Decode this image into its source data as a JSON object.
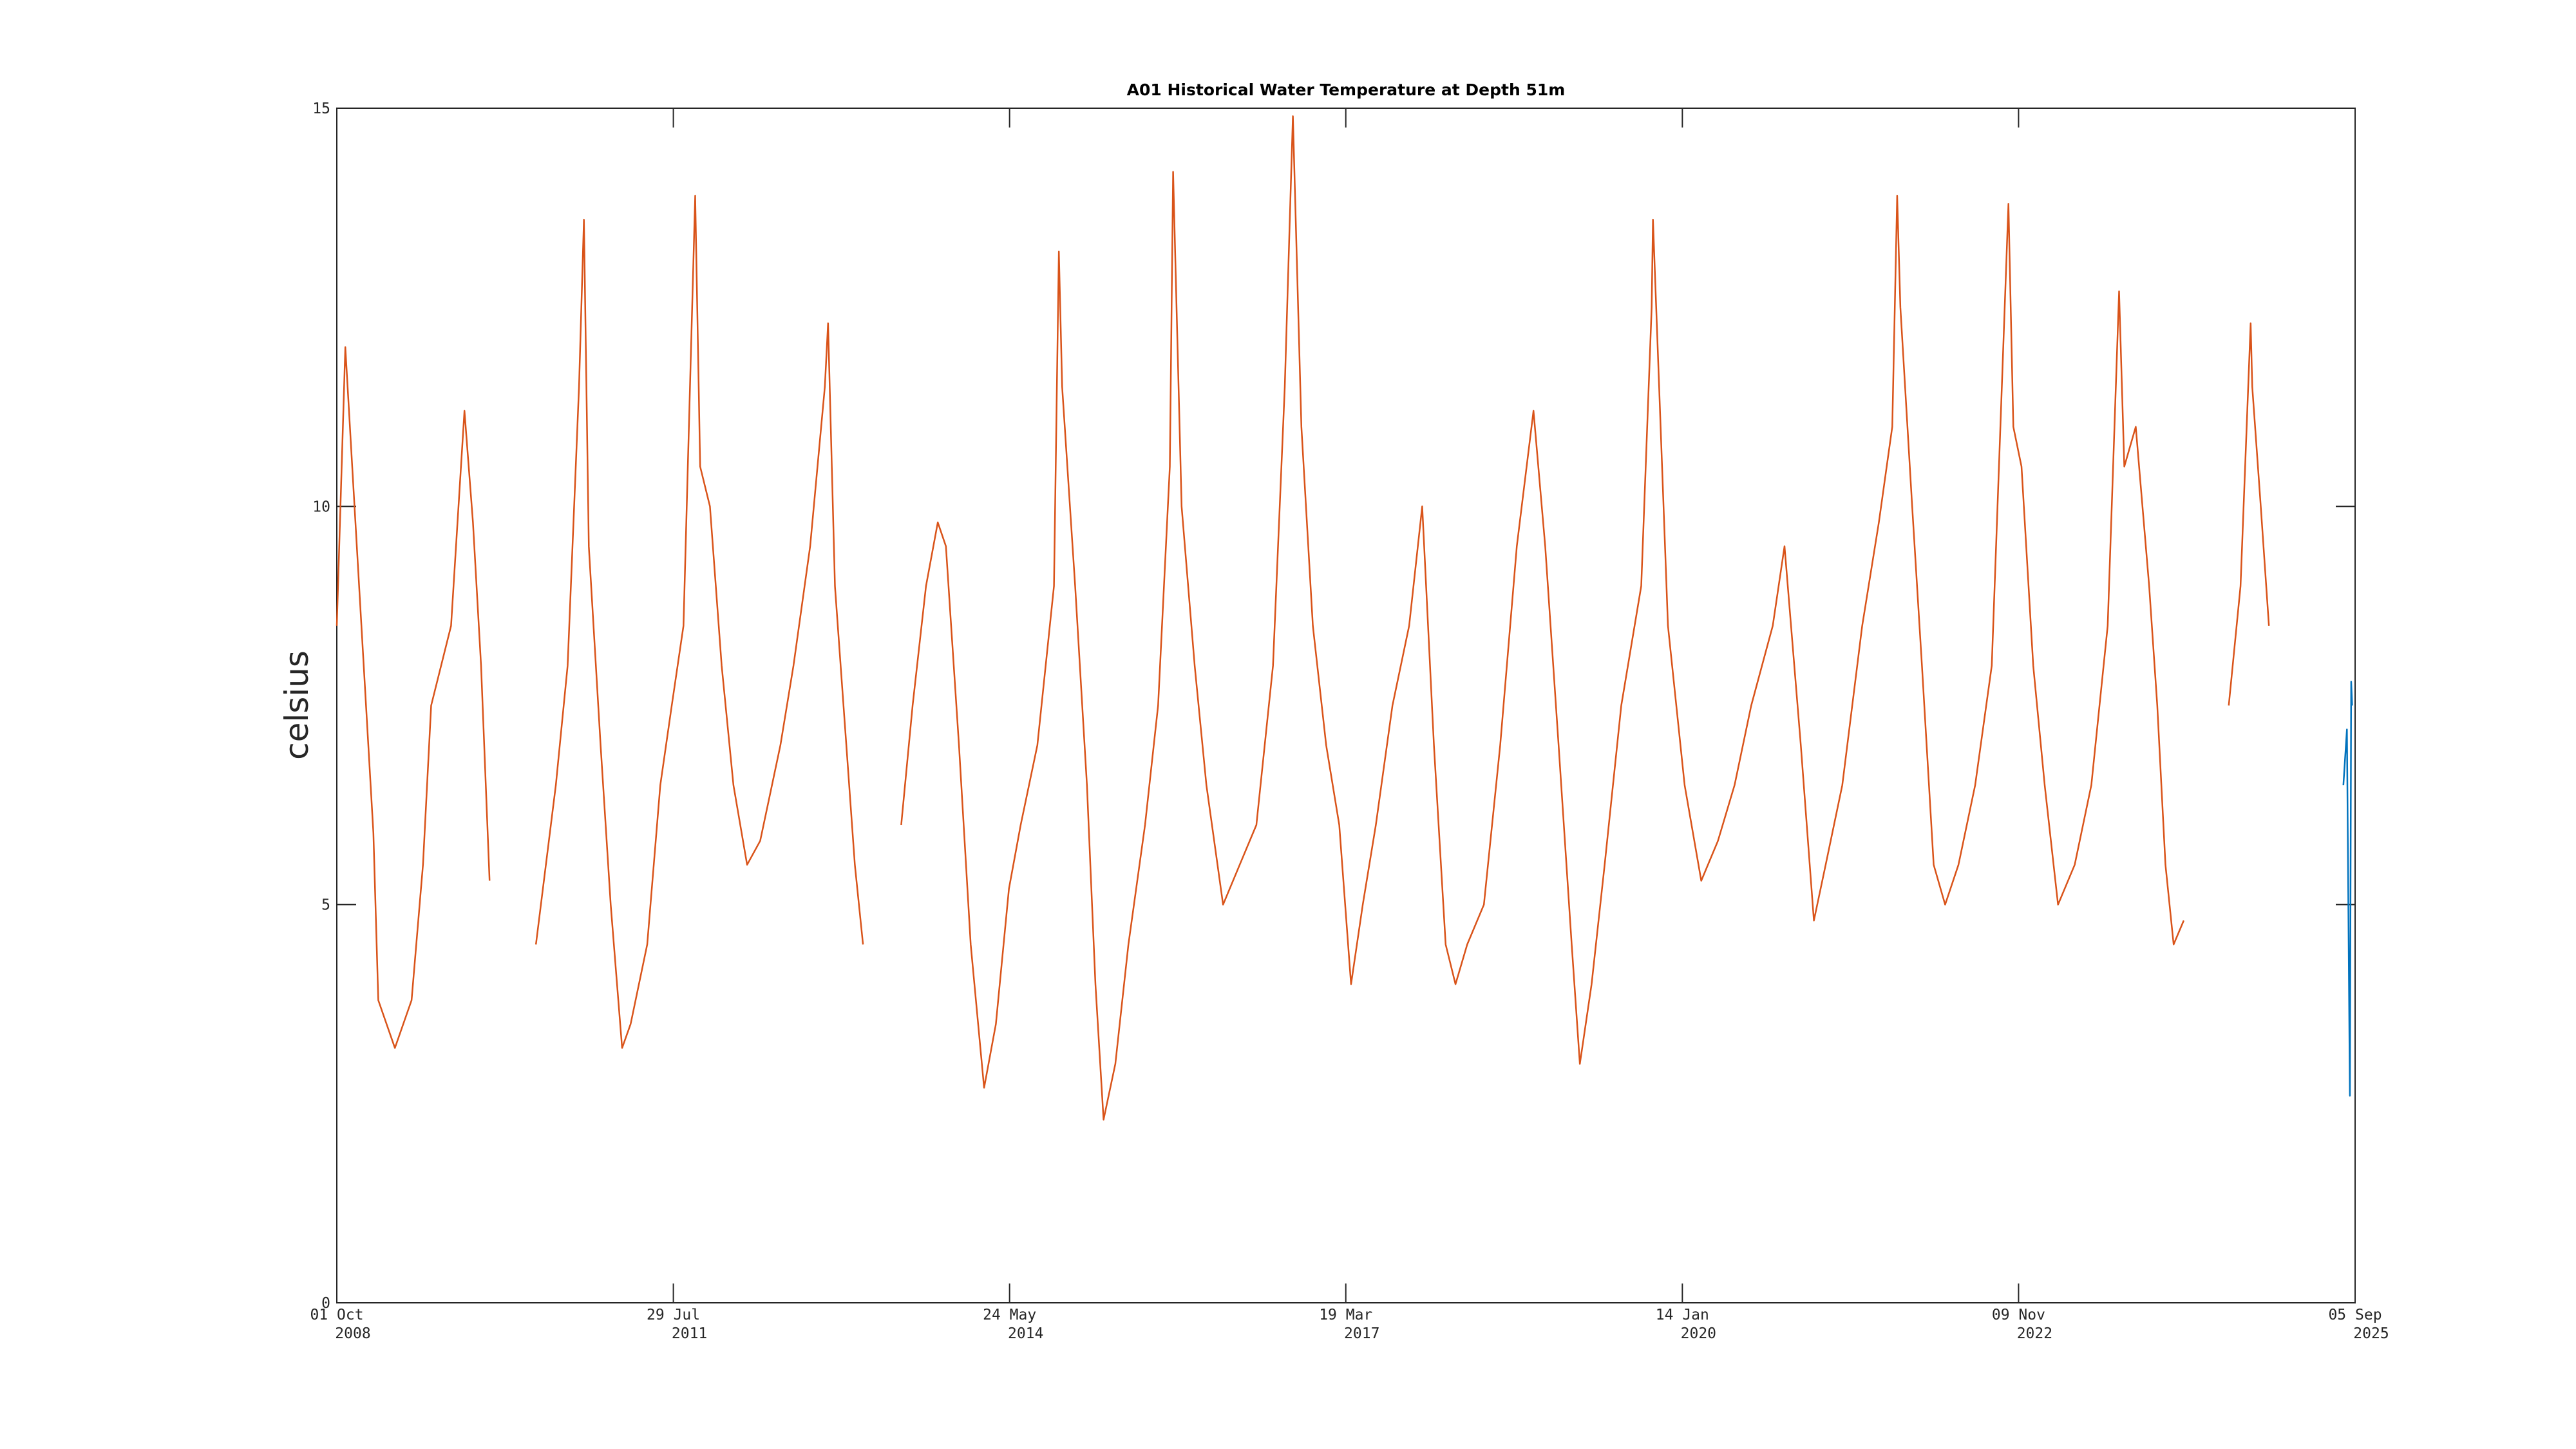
{
  "chart_data": {
    "type": "line",
    "title": "A01 Historical Water Temperature at Depth 51m",
    "y_label": "celsius",
    "xlim": [
      "2008-10-01",
      "2025-09-05"
    ],
    "xticks": [
      {
        "value": "2008-10-01",
        "label": [
          "01 Oct",
          "2008"
        ]
      },
      {
        "value": "2011-07-29",
        "label": [
          "29 Jul",
          "2011"
        ]
      },
      {
        "value": "2014-05-24",
        "label": [
          "24 May",
          "2014"
        ]
      },
      {
        "value": "2017-03-19",
        "label": [
          "19 Mar",
          "2017"
        ]
      },
      {
        "value": "2020-01-14",
        "label": [
          "14 Jan",
          "2020"
        ]
      },
      {
        "value": "2022-11-09",
        "label": [
          "09 Nov",
          "2022"
        ]
      },
      {
        "value": "2025-09-05",
        "label": [
          "05 Sep",
          "2025"
        ]
      }
    ],
    "ylim": [
      0,
      15
    ],
    "yticks": [
      0,
      5,
      10,
      15
    ],
    "grid": false,
    "series": [
      {
        "color": "#d95319",
        "x": [
          "2008-10-01",
          "2008-10-27",
          "2009-01-21",
          "2009-02-05",
          "2009-03-28",
          "2009-05-18",
          "2009-06-22",
          "2009-07-17",
          "2009-09-16",
          "2009-10-27",
          "2009-11-22",
          "2009-12-17",
          "2010-01-12",
          "2010-03-01",
          "2010-06-03",
          "2010-08-03",
          "2010-09-08",
          "2010-10-13",
          "2010-10-28",
          "2010-11-12",
          "2010-12-18",
          "2011-01-18",
          "2011-02-22",
          "2011-03-20",
          "2011-05-10",
          "2011-06-19",
          "2011-07-24",
          "2011-08-29",
          "2011-10-04",
          "2011-10-19",
          "2011-11-18",
          "2011-12-24",
          "2012-01-29",
          "2012-03-11",
          "2012-04-20",
          "2012-05-26",
          "2012-06-21",
          "2012-07-31",
          "2012-09-20",
          "2012-11-04",
          "2012-11-14",
          "2012-12-05",
          "2013-01-09",
          "2013-02-04",
          "2013-03-01",
          "2013-05-01",
          "2013-06-26",
          "2013-07-31",
          "2013-09-10",
          "2013-10-16",
          "2013-11-10",
          "2013-12-20",
          "2014-01-25",
          "2014-03-07",
          "2014-04-12",
          "2014-05-22",
          "2014-06-27",
          "2014-08-17",
          "2014-10-07",
          "2014-10-22",
          "2014-11-01",
          "2014-12-11",
          "2015-01-16",
          "2015-02-11",
          "2015-03-08",
          "2015-04-13",
          "2015-05-23",
          "2015-07-13",
          "2015-08-22",
          "2015-09-27",
          "2015-10-07",
          "2015-11-02",
          "2015-12-12",
          "2016-01-17",
          "2016-03-08",
          "2016-04-28",
          "2016-06-18",
          "2016-08-08",
          "2016-09-13",
          "2016-10-08",
          "2016-11-03",
          "2016-12-08",
          "2017-01-18",
          "2017-02-27",
          "2017-04-04",
          "2017-05-10",
          "2017-06-19",
          "2017-08-09",
          "2017-09-29",
          "2017-11-08",
          "2017-12-14",
          "2018-01-19",
          "2018-02-18",
          "2018-03-26",
          "2018-05-16",
          "2018-07-05",
          "2018-08-25",
          "2018-10-15",
          "2018-11-20",
          "2018-12-31",
          "2019-02-09",
          "2019-03-06",
          "2019-04-11",
          "2019-05-21",
          "2019-07-11",
          "2019-09-10",
          "2019-10-12",
          "2019-10-16",
          "2019-12-01",
          "2020-01-21",
          "2020-03-12",
          "2020-05-02",
          "2020-06-22",
          "2020-08-12",
          "2020-10-17",
          "2020-11-22",
          "2021-01-11",
          "2021-02-20",
          "2021-03-28",
          "2021-05-18",
          "2021-07-18",
          "2021-09-07",
          "2021-10-18",
          "2021-11-02",
          "2021-11-12",
          "2021-12-18",
          "2022-01-17",
          "2022-02-22",
          "2022-03-29",
          "2022-05-09",
          "2022-06-29",
          "2022-08-19",
          "2022-10-09",
          "2022-10-24",
          "2022-11-18",
          "2022-12-24",
          "2023-01-28",
          "2023-03-10",
          "2023-04-30",
          "2023-06-20",
          "2023-08-09",
          "2023-09-13",
          "2023-09-29",
          "2023-11-03",
          "2023-12-14",
          "2024-01-08",
          "2024-02-02",
          "2024-02-27",
          "2024-03-29",
          "2024-06-01",
          "2024-08-14",
          "2024-09-19",
          "2024-10-20",
          "2024-10-25",
          "2024-11-20",
          "2024-12-15"
        ],
        "values": [
          8.5,
          12,
          5.9,
          3.8,
          3.2,
          3.8,
          5.5,
          7.5,
          8.5,
          11.2,
          9.8,
          8,
          5.3,
          null,
          4.5,
          6.5,
          8,
          11.5,
          13.6,
          9.5,
          7,
          5,
          3.2,
          3.5,
          4.5,
          6.5,
          7.5,
          8.5,
          13.9,
          10.5,
          10,
          8,
          6.5,
          5.5,
          5.8,
          6.5,
          7,
          8,
          9.5,
          11.5,
          12.3,
          9,
          7,
          5.5,
          4.5,
          null,
          6,
          7.5,
          9,
          9.8,
          9.5,
          7,
          4.5,
          2.7,
          3.5,
          5.2,
          6,
          7,
          9,
          13.2,
          11.5,
          9,
          6.5,
          4,
          2.3,
          3,
          4.5,
          6,
          7.5,
          10.5,
          14.2,
          10,
          8,
          6.5,
          5,
          5.5,
          6,
          8,
          11.5,
          14.9,
          11,
          8.5,
          7,
          6,
          4,
          5,
          6,
          7.5,
          8.5,
          10,
          7,
          4.5,
          4,
          4.5,
          5,
          7,
          9.5,
          11.2,
          9.5,
          7,
          4.5,
          3,
          4,
          5.5,
          7.5,
          9,
          12.5,
          13.6,
          8.5,
          6.5,
          5.3,
          5.8,
          6.5,
          7.5,
          8.5,
          9.5,
          7,
          4.8,
          5.5,
          6.5,
          8.5,
          9.8,
          11,
          13.9,
          12.5,
          10,
          8,
          5.5,
          5,
          5.5,
          6.5,
          8,
          13.8,
          11,
          10.5,
          8,
          6.5,
          5,
          5.5,
          6.5,
          8.5,
          12.7,
          10.5,
          11,
          9,
          7.5,
          5.5,
          4.5,
          4.8,
          null,
          7.5,
          9,
          12.3,
          11.5,
          10,
          8.5
        ]
      },
      {
        "color": "#0072bd",
        "x": [
          "2025-07-31",
          "2025-08-11",
          "2025-08-20",
          "2025-08-24",
          "2025-08-27"
        ],
        "values": [
          6.5,
          7.2,
          2.6,
          7.8,
          7.5
        ]
      }
    ]
  }
}
